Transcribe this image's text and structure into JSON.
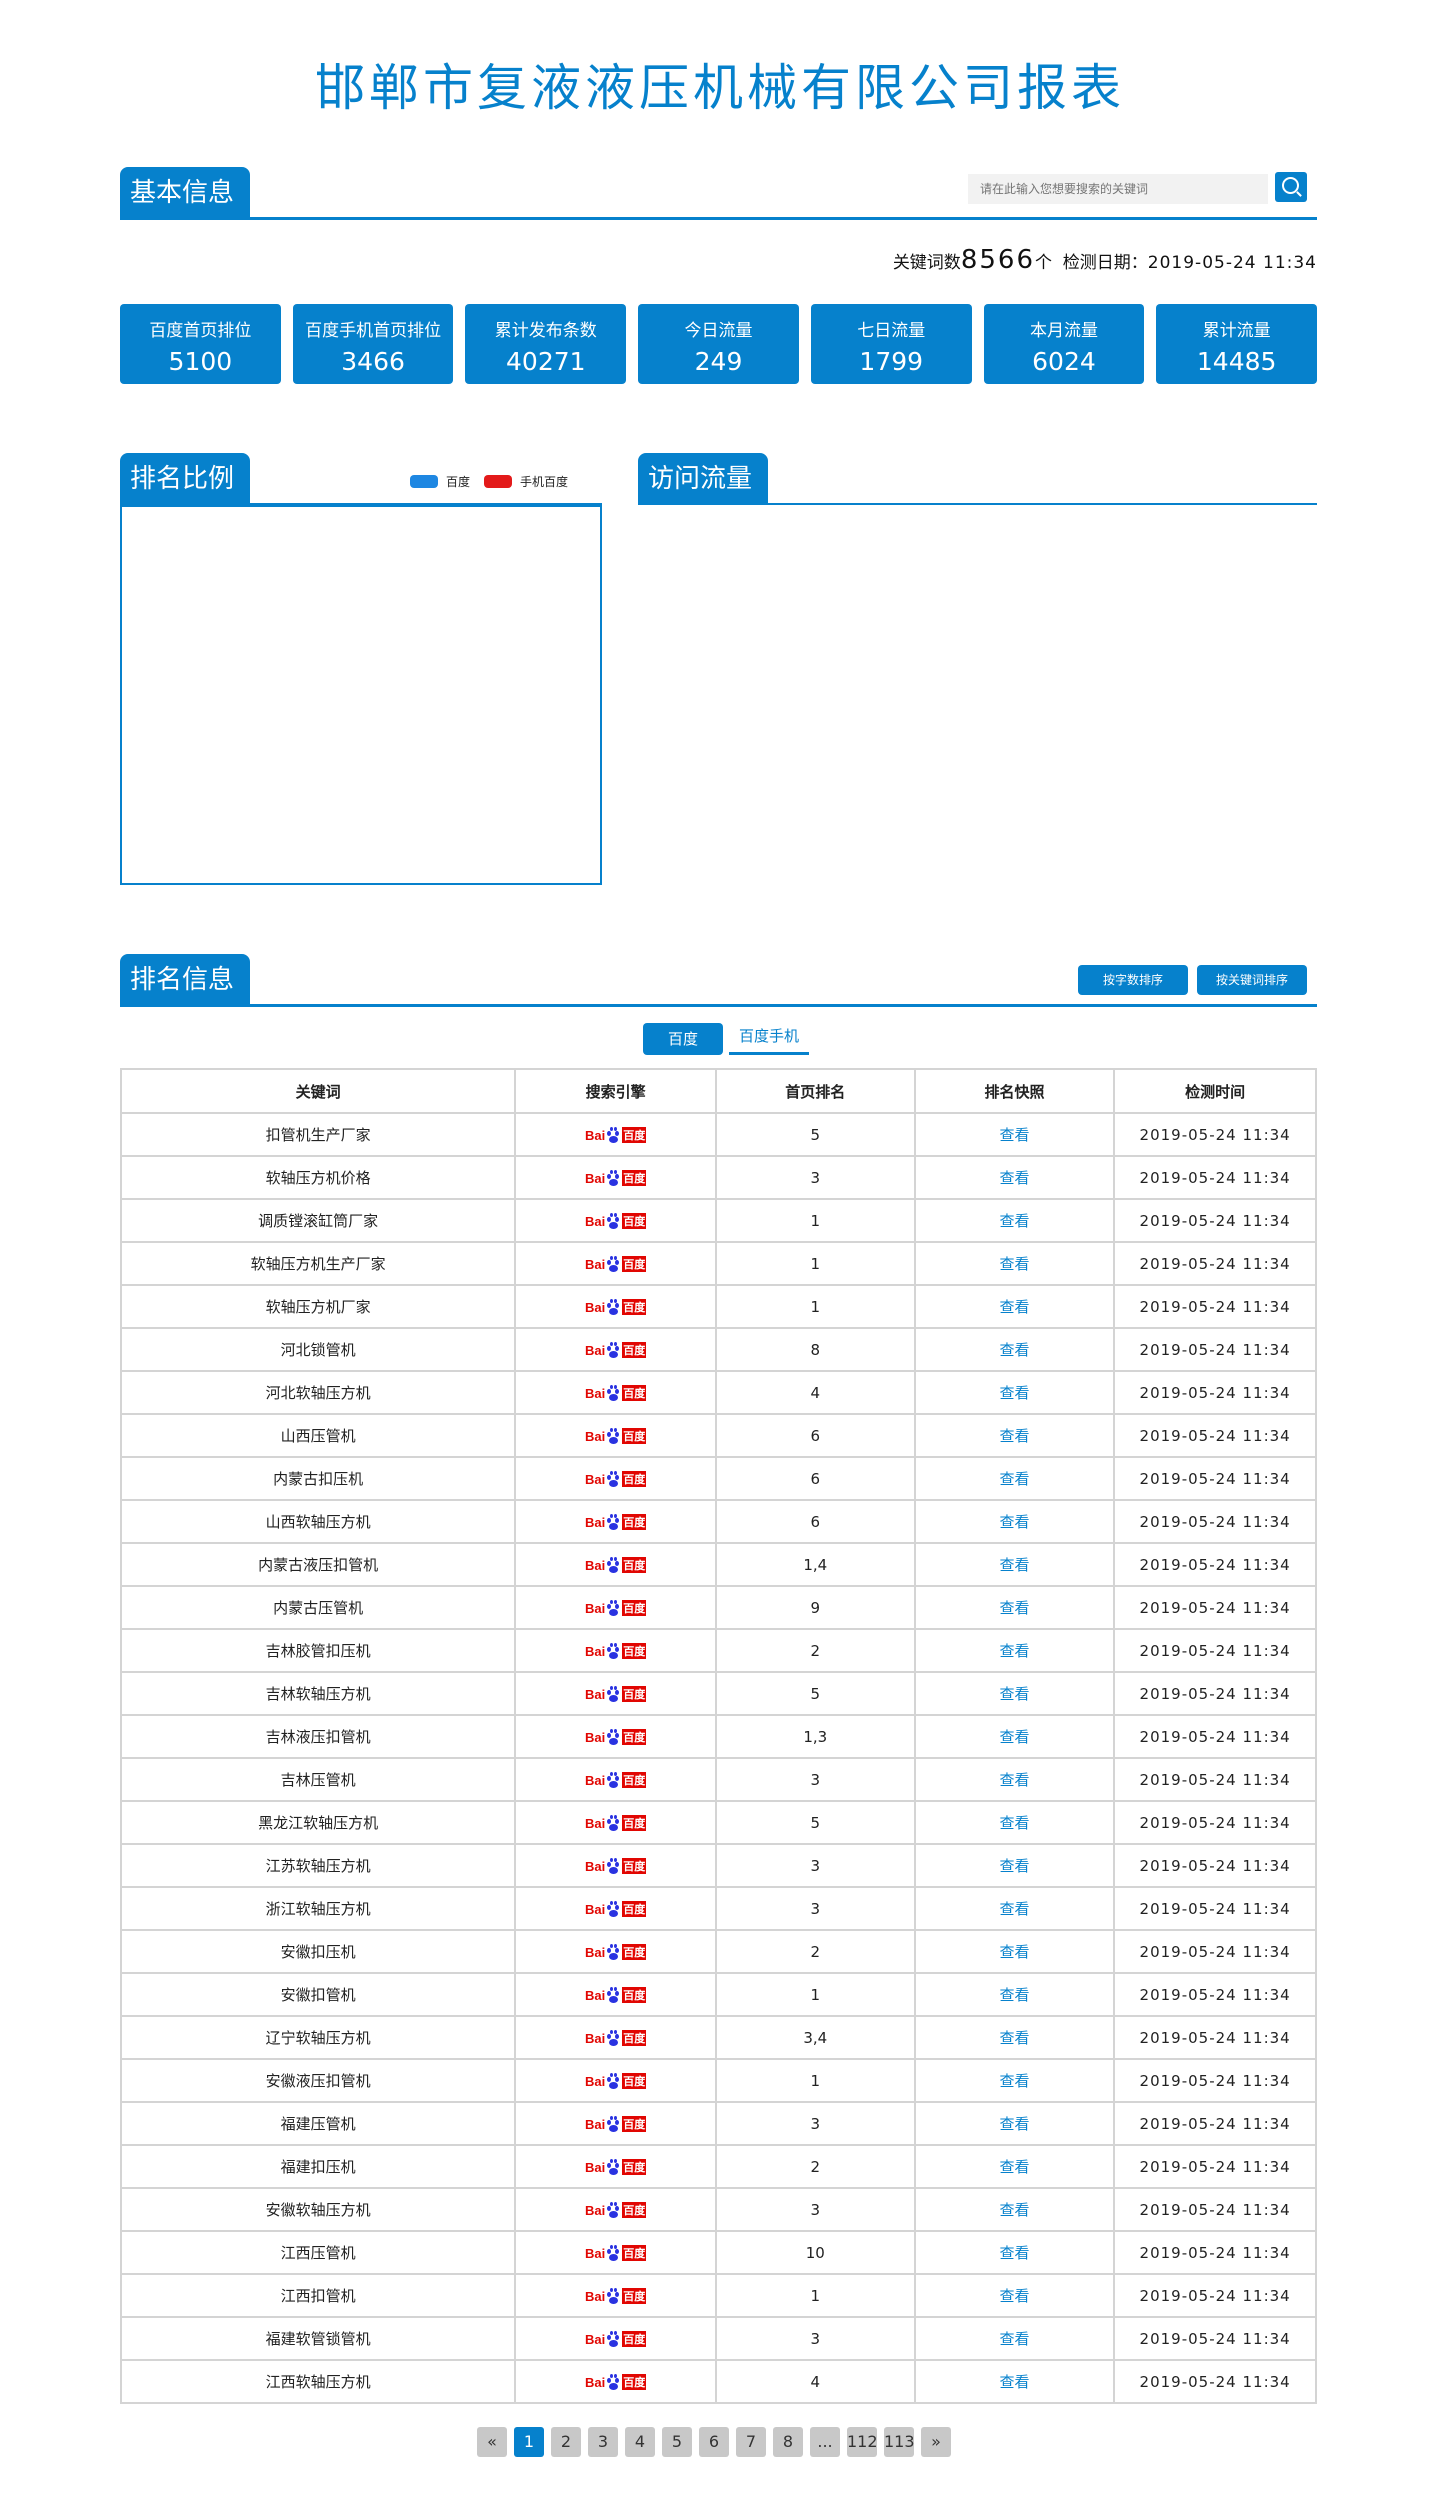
{
  "title": "邯郸市复液液压机械有限公司报表",
  "basic": {
    "tab": "基本信息",
    "search_placeholder": "请在此输入您想要搜索的关键词",
    "kw_label": "关键词数",
    "kw_count": "8566",
    "kw_unit": "个",
    "date_label": "检测日期：",
    "date": "2019-05-24 11:34",
    "stats": [
      {
        "label": "百度首页排位",
        "value": "5100"
      },
      {
        "label": "百度手机首页排位",
        "value": "3466"
      },
      {
        "label": "累计发布条数",
        "value": "40271"
      },
      {
        "label": "今日流量",
        "value": "249"
      },
      {
        "label": "七日流量",
        "value": "1799"
      },
      {
        "label": "本月流量",
        "value": "6024"
      },
      {
        "label": "累计流量",
        "value": "14485"
      }
    ]
  },
  "ratio": {
    "tab": "排名比例",
    "legend": [
      {
        "name": "百度",
        "color": "#1e87e2"
      },
      {
        "name": "手机百度",
        "color": "#e31a1a"
      }
    ]
  },
  "traffic": {
    "tab": "访问流量"
  },
  "ranking": {
    "tab": "排名信息",
    "sort_by_count": "按字数排序",
    "sort_by_keyword": "按关键词排序",
    "engine_tabs": [
      "百度",
      "百度手机"
    ],
    "columns": [
      "关键词",
      "搜索引擎",
      "首页排名",
      "排名快照",
      "检测时间"
    ],
    "logo_text": "Bai",
    "logo_cn": "百度",
    "view_label": "查看",
    "time": "2019-05-24 11:34",
    "rows": [
      [
        "扣管机生产厂家",
        "5"
      ],
      [
        "软轴压方机价格",
        "3"
      ],
      [
        "调质镗滚缸筒厂家",
        "1"
      ],
      [
        "软轴压方机生产厂家",
        "1"
      ],
      [
        "软轴压方机厂家",
        "1"
      ],
      [
        "河北锁管机",
        "8"
      ],
      [
        "河北软轴压方机",
        "4"
      ],
      [
        "山西压管机",
        "6"
      ],
      [
        "内蒙古扣压机",
        "6"
      ],
      [
        "山西软轴压方机",
        "6"
      ],
      [
        "内蒙古液压扣管机",
        "1,4"
      ],
      [
        "内蒙古压管机",
        "9"
      ],
      [
        "吉林胶管扣压机",
        "2"
      ],
      [
        "吉林软轴压方机",
        "5"
      ],
      [
        "吉林液压扣管机",
        "1,3"
      ],
      [
        "吉林压管机",
        "3"
      ],
      [
        "黑龙江软轴压方机",
        "5"
      ],
      [
        "江苏软轴压方机",
        "3"
      ],
      [
        "浙江软轴压方机",
        "3"
      ],
      [
        "安徽扣压机",
        "2"
      ],
      [
        "安徽扣管机",
        "1"
      ],
      [
        "辽宁软轴压方机",
        "3,4"
      ],
      [
        "安徽液压扣管机",
        "1"
      ],
      [
        "福建压管机",
        "3"
      ],
      [
        "福建扣压机",
        "2"
      ],
      [
        "安徽软轴压方机",
        "3"
      ],
      [
        "江西压管机",
        "10"
      ],
      [
        "江西扣管机",
        "1"
      ],
      [
        "福建软管锁管机",
        "3"
      ],
      [
        "江西软轴压方机",
        "4"
      ]
    ]
  },
  "pager": {
    "prev": "«",
    "next": "»",
    "pages": [
      "1",
      "2",
      "3",
      "4",
      "5",
      "6",
      "7",
      "8",
      "...",
      "112",
      "113"
    ],
    "current": "1"
  },
  "colors": {
    "accent": "#0681cc"
  }
}
